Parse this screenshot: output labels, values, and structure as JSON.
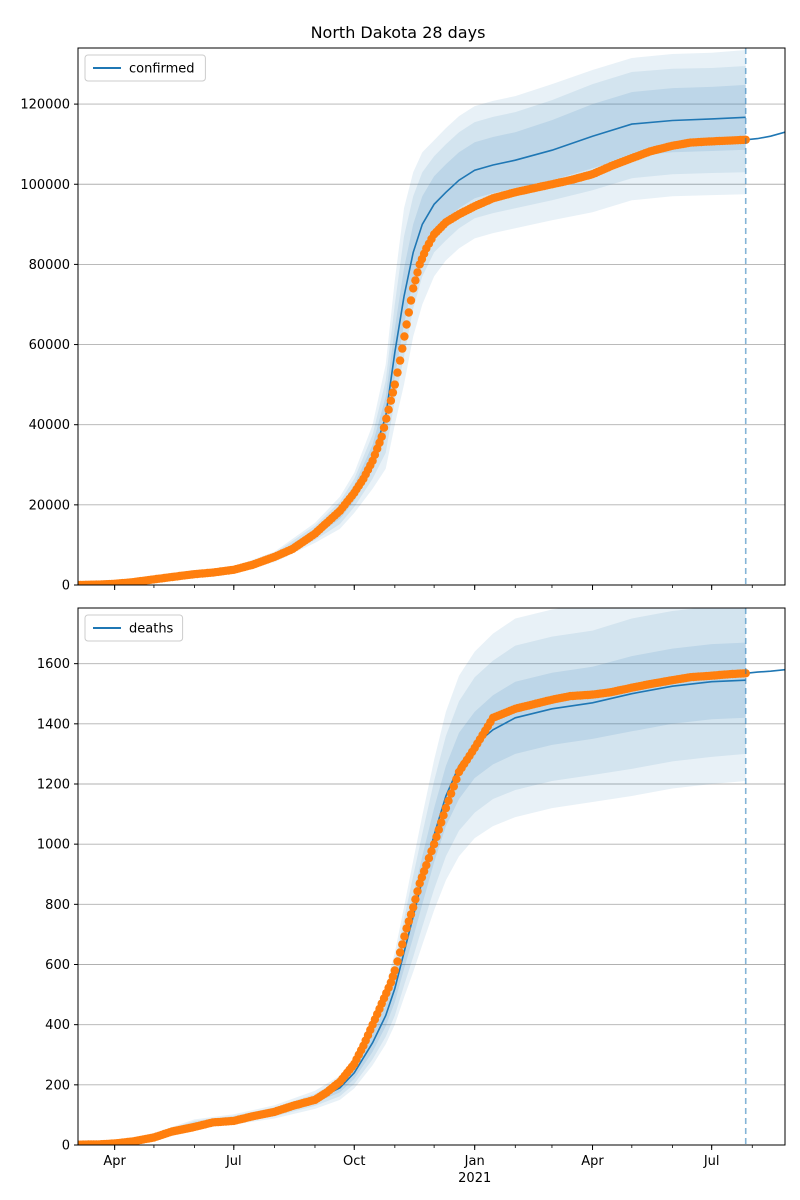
{
  "title": "North Dakota 28 days",
  "colors": {
    "model_line": "#1f77b4",
    "band": "#1f77b4",
    "observed": "#ff7f0e",
    "grid": "#b0b0b0",
    "forecast_marker": "#1f77b4"
  },
  "x_axis": {
    "tick_labels": [
      "Apr",
      "Jul",
      "Oct",
      "Jan",
      "Apr",
      "Jul"
    ],
    "tick_dates": [
      "2020-04-01",
      "2020-07-01",
      "2020-10-01",
      "2021-01-01",
      "2021-04-01",
      "2021-07-01"
    ],
    "year_label": "2021",
    "range": [
      "2020-03-04",
      "2021-08-26"
    ],
    "forecast_start": "2021-07-27"
  },
  "chart_data": [
    {
      "type": "line",
      "series_name": "confirmed",
      "legend_label": "confirmed",
      "legend_position": "upper-left",
      "grid": "horizontal",
      "ylim": [
        0,
        134000
      ],
      "y_ticks": [
        0,
        20000,
        40000,
        60000,
        80000,
        100000,
        120000
      ],
      "y_tick_labels": [
        "0",
        "20000",
        "40000",
        "60000",
        "80000",
        "100000",
        "120000"
      ],
      "x": [
        "2020-03-04",
        "2020-04-01",
        "2020-05-01",
        "2020-06-01",
        "2020-07-01",
        "2020-08-01",
        "2020-09-01",
        "2020-09-20",
        "2020-10-01",
        "2020-10-15",
        "2020-10-25",
        "2020-11-01",
        "2020-11-08",
        "2020-11-15",
        "2020-11-22",
        "2020-12-01",
        "2020-12-10",
        "2020-12-20",
        "2021-01-01",
        "2021-01-15",
        "2021-02-01",
        "2021-03-01",
        "2021-04-01",
        "2021-05-01",
        "2021-06-01",
        "2021-07-01",
        "2021-07-27"
      ],
      "fit": [
        0,
        300,
        1500,
        3000,
        4000,
        7000,
        13000,
        18000,
        23000,
        32000,
        42000,
        58000,
        72000,
        83000,
        90000,
        95000,
        98000,
        101000,
        103500,
        104800,
        106000,
        108500,
        112000,
        115000,
        115900,
        116300,
        116700
      ],
      "band_50": [
        [
          0,
          0
        ],
        [
          280,
          320
        ],
        [
          1450,
          1550
        ],
        [
          2900,
          3100
        ],
        [
          3800,
          4200
        ],
        [
          6500,
          7400
        ],
        [
          12000,
          14000
        ],
        [
          16500,
          19500
        ],
        [
          21000,
          25000
        ],
        [
          29000,
          35000
        ],
        [
          37000,
          47000
        ],
        [
          52000,
          64000
        ],
        [
          65000,
          79000
        ],
        [
          76000,
          90000
        ],
        [
          83000,
          97000
        ],
        [
          88000,
          102000
        ],
        [
          91000,
          105000
        ],
        [
          94000,
          108000
        ],
        [
          96500,
          110500
        ],
        [
          97800,
          111800
        ],
        [
          99000,
          113000
        ],
        [
          101000,
          116000
        ],
        [
          104000,
          120000
        ],
        [
          107000,
          123000
        ],
        [
          108000,
          124000
        ],
        [
          108300,
          124300
        ],
        [
          108600,
          124800
        ]
      ],
      "band_80": [
        [
          0,
          0
        ],
        [
          250,
          350
        ],
        [
          1350,
          1650
        ],
        [
          2750,
          3250
        ],
        [
          3600,
          4400
        ],
        [
          6100,
          7900
        ],
        [
          11200,
          14800
        ],
        [
          15200,
          20800
        ],
        [
          19500,
          26500
        ],
        [
          26500,
          37500
        ],
        [
          33000,
          51000
        ],
        [
          46000,
          70000
        ],
        [
          57000,
          87000
        ],
        [
          69000,
          97000
        ],
        [
          77000,
          103000
        ],
        [
          83000,
          107000
        ],
        [
          86000,
          110000
        ],
        [
          89000,
          113000
        ],
        [
          91500,
          115500
        ],
        [
          92800,
          116800
        ],
        [
          94000,
          118000
        ],
        [
          96000,
          121000
        ],
        [
          98500,
          125000
        ],
        [
          101500,
          128000
        ],
        [
          102500,
          128800
        ],
        [
          102800,
          129000
        ],
        [
          103000,
          129500
        ]
      ],
      "band_95": [
        [
          0,
          0
        ],
        [
          220,
          380
        ],
        [
          1250,
          1750
        ],
        [
          2600,
          3400
        ],
        [
          3400,
          4600
        ],
        [
          5700,
          8300
        ],
        [
          10500,
          15500
        ],
        [
          14000,
          22000
        ],
        [
          18000,
          28000
        ],
        [
          24000,
          40000
        ],
        [
          29000,
          55000
        ],
        [
          40000,
          76000
        ],
        [
          50000,
          94000
        ],
        [
          62000,
          103000
        ],
        [
          70000,
          108000
        ],
        [
          77000,
          111000
        ],
        [
          81000,
          114000
        ],
        [
          84000,
          117000
        ],
        [
          86500,
          119500
        ],
        [
          87800,
          120800
        ],
        [
          89000,
          122000
        ],
        [
          91000,
          125000
        ],
        [
          93000,
          128500
        ],
        [
          96000,
          131500
        ],
        [
          97000,
          132500
        ],
        [
          97300,
          132800
        ],
        [
          97500,
          133500
        ]
      ],
      "observed_x": [
        "2020-03-04",
        "2020-03-20",
        "2020-04-01",
        "2020-04-15",
        "2020-05-01",
        "2020-05-15",
        "2020-06-01",
        "2020-06-15",
        "2020-07-01",
        "2020-07-15",
        "2020-08-01",
        "2020-08-15",
        "2020-09-01",
        "2020-09-10",
        "2020-09-20",
        "2020-10-01",
        "2020-10-08",
        "2020-10-15",
        "2020-10-22",
        "2020-10-29",
        "2020-11-01",
        "2020-11-05",
        "2020-11-10",
        "2020-11-15",
        "2020-11-20",
        "2020-11-25",
        "2020-12-01",
        "2020-12-10",
        "2020-12-20",
        "2021-01-01",
        "2021-01-15",
        "2021-02-01",
        "2021-02-15",
        "2021-03-01",
        "2021-03-15",
        "2021-04-01",
        "2021-04-15",
        "2021-05-01",
        "2021-05-15",
        "2021-06-01",
        "2021-06-15",
        "2021-07-01",
        "2021-07-15",
        "2021-07-27"
      ],
      "observed": [
        0,
        100,
        300,
        700,
        1400,
        2000,
        2700,
        3100,
        3800,
        5000,
        7000,
        9000,
        12800,
        15500,
        18500,
        23000,
        26500,
        31000,
        37000,
        46000,
        50000,
        56000,
        65000,
        74000,
        80000,
        84000,
        87500,
        90500,
        92500,
        94500,
        96500,
        98000,
        99000,
        100000,
        101000,
        102500,
        104500,
        106500,
        108200,
        109600,
        110400,
        110700,
        110900,
        111100
      ],
      "projection_x": [
        "2021-07-27",
        "2021-08-05",
        "2021-08-15",
        "2021-08-26"
      ],
      "projection": [
        111100,
        111400,
        112000,
        113000
      ]
    },
    {
      "type": "line",
      "series_name": "deaths",
      "legend_label": "deaths",
      "legend_position": "upper-left",
      "grid": "horizontal",
      "ylim": [
        0,
        1785
      ],
      "y_ticks": [
        0,
        200,
        400,
        600,
        800,
        1000,
        1200,
        1400,
        1600
      ],
      "y_tick_labels": [
        "0",
        "200",
        "400",
        "600",
        "800",
        "1000",
        "1200",
        "1400",
        "1600"
      ],
      "x": [
        "2020-03-04",
        "2020-04-01",
        "2020-05-01",
        "2020-06-01",
        "2020-07-01",
        "2020-08-01",
        "2020-09-01",
        "2020-09-20",
        "2020-10-01",
        "2020-10-15",
        "2020-10-25",
        "2020-11-01",
        "2020-11-08",
        "2020-11-15",
        "2020-11-22",
        "2020-12-01",
        "2020-12-10",
        "2020-12-20",
        "2021-01-01",
        "2021-01-15",
        "2021-02-01",
        "2021-03-01",
        "2021-04-01",
        "2021-05-01",
        "2021-06-01",
        "2021-07-01",
        "2021-07-27"
      ],
      "fit": [
        0,
        3,
        30,
        70,
        85,
        110,
        150,
        190,
        240,
        340,
        430,
        520,
        640,
        760,
        880,
        1030,
        1160,
        1260,
        1330,
        1380,
        1420,
        1450,
        1470,
        1500,
        1525,
        1540,
        1545
      ],
      "band_50": [
        [
          0,
          0
        ],
        [
          2,
          4
        ],
        [
          27,
          33
        ],
        [
          65,
          75
        ],
        [
          79,
          91
        ],
        [
          103,
          117
        ],
        [
          140,
          160
        ],
        [
          175,
          205
        ],
        [
          220,
          260
        ],
        [
          310,
          370
        ],
        [
          395,
          465
        ],
        [
          475,
          565
        ],
        [
          585,
          695
        ],
        [
          690,
          830
        ],
        [
          800,
          960
        ],
        [
          940,
          1120
        ],
        [
          1060,
          1260
        ],
        [
          1150,
          1370
        ],
        [
          1220,
          1440
        ],
        [
          1265,
          1495
        ],
        [
          1300,
          1540
        ],
        [
          1330,
          1570
        ],
        [
          1350,
          1590
        ],
        [
          1375,
          1625
        ],
        [
          1400,
          1650
        ],
        [
          1415,
          1665
        ],
        [
          1420,
          1670
        ]
      ],
      "band_80": [
        [
          0,
          0
        ],
        [
          1,
          5
        ],
        [
          24,
          36
        ],
        [
          60,
          80
        ],
        [
          73,
          97
        ],
        [
          95,
          125
        ],
        [
          130,
          170
        ],
        [
          162,
          218
        ],
        [
          203,
          277
        ],
        [
          285,
          395
        ],
        [
          360,
          500
        ],
        [
          430,
          610
        ],
        [
          530,
          750
        ],
        [
          625,
          895
        ],
        [
          725,
          1035
        ],
        [
          850,
          1210
        ],
        [
          960,
          1360
        ],
        [
          1045,
          1475
        ],
        [
          1105,
          1555
        ],
        [
          1150,
          1610
        ],
        [
          1180,
          1660
        ],
        [
          1210,
          1690
        ],
        [
          1230,
          1710
        ],
        [
          1250,
          1750
        ],
        [
          1275,
          1775
        ],
        [
          1290,
          1790
        ],
        [
          1300,
          1790
        ]
      ],
      "band_95": [
        [
          0,
          0
        ],
        [
          0,
          6
        ],
        [
          20,
          40
        ],
        [
          55,
          85
        ],
        [
          68,
          102
        ],
        [
          88,
          132
        ],
        [
          120,
          180
        ],
        [
          150,
          230
        ],
        [
          188,
          292
        ],
        [
          265,
          415
        ],
        [
          335,
          525
        ],
        [
          400,
          640
        ],
        [
          490,
          790
        ],
        [
          575,
          945
        ],
        [
          665,
          1095
        ],
        [
          780,
          1280
        ],
        [
          880,
          1440
        ],
        [
          960,
          1560
        ],
        [
          1020,
          1640
        ],
        [
          1060,
          1700
        ],
        [
          1090,
          1750
        ],
        [
          1120,
          1780
        ],
        [
          1140,
          1800
        ],
        [
          1160,
          1840
        ],
        [
          1185,
          1865
        ],
        [
          1200,
          1880
        ],
        [
          1210,
          1880
        ]
      ],
      "observed_x": [
        "2020-03-04",
        "2020-03-20",
        "2020-04-01",
        "2020-04-15",
        "2020-05-01",
        "2020-05-15",
        "2020-06-01",
        "2020-06-15",
        "2020-07-01",
        "2020-07-15",
        "2020-08-01",
        "2020-08-15",
        "2020-09-01",
        "2020-09-10",
        "2020-09-20",
        "2020-10-01",
        "2020-10-08",
        "2020-10-15",
        "2020-10-22",
        "2020-10-29",
        "2020-11-01",
        "2020-11-05",
        "2020-11-10",
        "2020-11-15",
        "2020-11-20",
        "2020-11-25",
        "2020-12-01",
        "2020-12-10",
        "2020-12-20",
        "2021-01-01",
        "2021-01-15",
        "2021-02-01",
        "2021-02-15",
        "2021-03-01",
        "2021-03-15",
        "2021-04-01",
        "2021-04-15",
        "2021-05-01",
        "2021-05-15",
        "2021-06-01",
        "2021-06-15",
        "2021-07-01",
        "2021-07-15",
        "2021-07-27"
      ],
      "observed": [
        1,
        2,
        5,
        12,
        25,
        45,
        60,
        75,
        80,
        95,
        110,
        130,
        150,
        175,
        210,
        270,
        330,
        400,
        470,
        540,
        580,
        640,
        720,
        790,
        870,
        930,
        1000,
        1120,
        1240,
        1320,
        1420,
        1450,
        1465,
        1480,
        1492,
        1497,
        1505,
        1520,
        1532,
        1545,
        1555,
        1560,
        1565,
        1568
      ],
      "projection_x": [
        "2021-07-27",
        "2021-08-05",
        "2021-08-15",
        "2021-08-26"
      ],
      "projection": [
        1568,
        1572,
        1575,
        1580
      ]
    }
  ]
}
